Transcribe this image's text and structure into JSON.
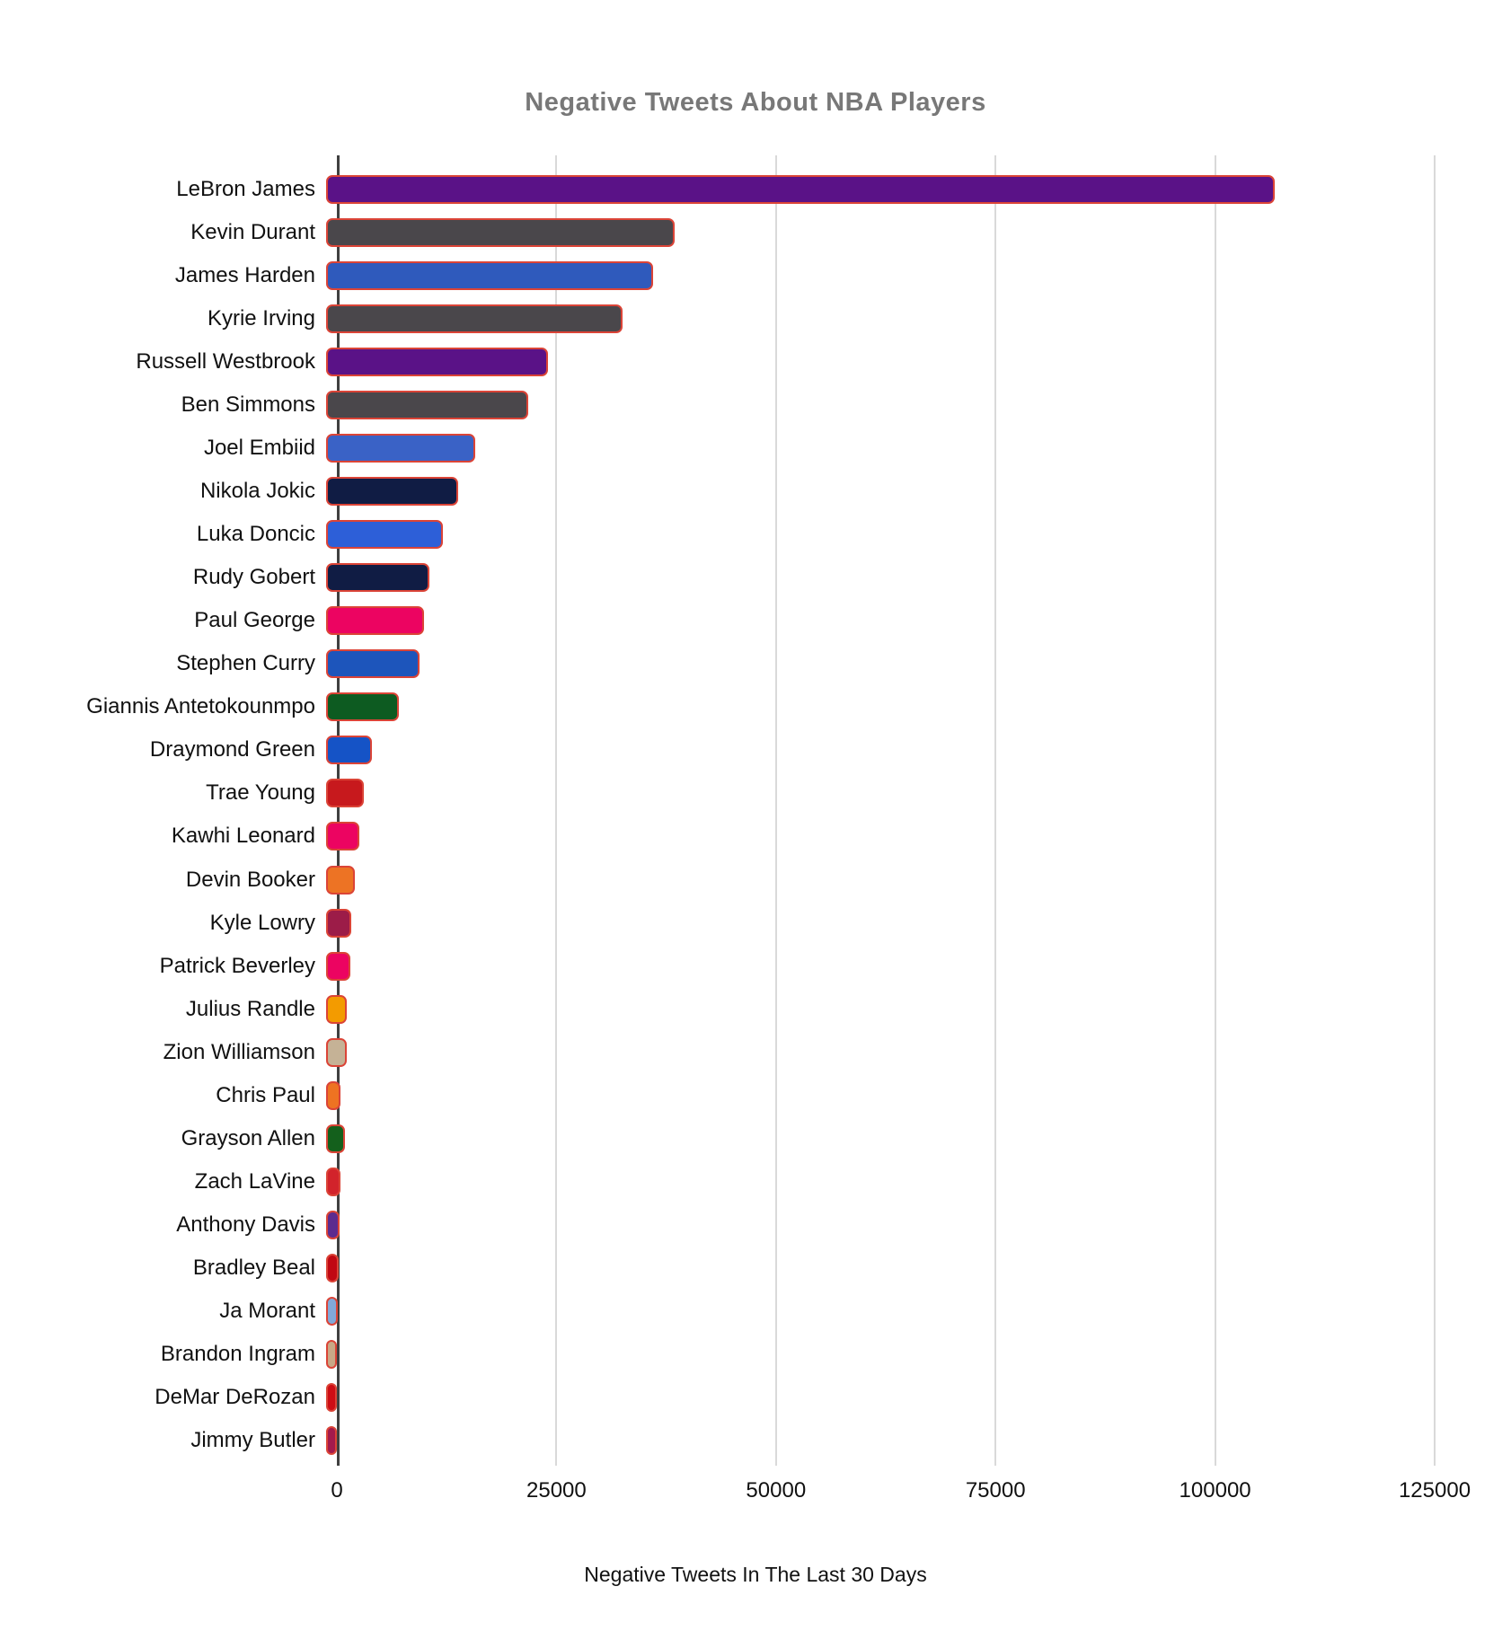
{
  "title": "Negative Tweets About NBA Players",
  "x_axis": {
    "label": "Negative Tweets In The Last 30 Days",
    "ticks": [
      "0",
      "25000",
      "50000",
      "75000",
      "100000",
      "125000"
    ],
    "max": 125000
  },
  "style_colors": {
    "title_text": "#787878",
    "axis_line": "#3f3f3f",
    "gridline": "#d9d9d9",
    "bar_border": "#db4437",
    "label_text": "#111111"
  },
  "chart_data": {
    "type": "bar",
    "orientation": "horizontal",
    "title": "Negative Tweets About NBA Players",
    "xlabel": "Negative Tweets In The Last 30 Days",
    "ylabel": "",
    "xlim": [
      0,
      125000
    ],
    "grid": true,
    "legend": false,
    "categories": [
      "LeBron James",
      "Kevin Durant",
      "James Harden",
      "Kyrie Irving",
      "Russell Westbrook",
      "Ben Simmons",
      "Joel Embiid",
      "Nikola Jokic",
      "Luka Doncic",
      "Rudy Gobert",
      "Paul George",
      "Stephen Curry",
      "Giannis Antetokounmpo",
      "Draymond Green",
      "Trae Young",
      "Kawhi Leonard",
      "Devin Booker",
      "Kyle Lowry",
      "Patrick Beverley",
      "Julius Randle",
      "Zion Williamson",
      "Chris Paul",
      "Grayson Allen",
      "Zach LaVine",
      "Anthony Davis",
      "Bradley Beal",
      "Ja Morant",
      "Brandon Ingram",
      "DeMar DeRozan",
      "Jimmy Butler"
    ],
    "values": [
      108000,
      39700,
      37200,
      33800,
      25300,
      23000,
      17000,
      15000,
      13300,
      11800,
      11100,
      10600,
      8300,
      5200,
      4300,
      3800,
      3300,
      2900,
      2800,
      2350,
      2400,
      1600,
      2100,
      1650,
      1550,
      1450,
      1350,
      1200,
      1200,
      1250
    ],
    "bar_colors": [
      "#5a1287",
      "#4a474b",
      "#2f5abc",
      "#4a474b",
      "#5a1287",
      "#4a474b",
      "#3a62c6",
      "#101c44",
      "#2d5fd8",
      "#101c44",
      "#ec0461",
      "#1d55bb",
      "#0d5b21",
      "#1553c6",
      "#c7191d",
      "#ec0461",
      "#ed7324",
      "#9c1c48",
      "#ec0461",
      "#f39b00",
      "#c5b296",
      "#ee7322",
      "#14601c",
      "#d2232b",
      "#5c2b8f",
      "#c00813",
      "#81a8d8",
      "#c9a886",
      "#cd0d15",
      "#a31a4c"
    ]
  }
}
